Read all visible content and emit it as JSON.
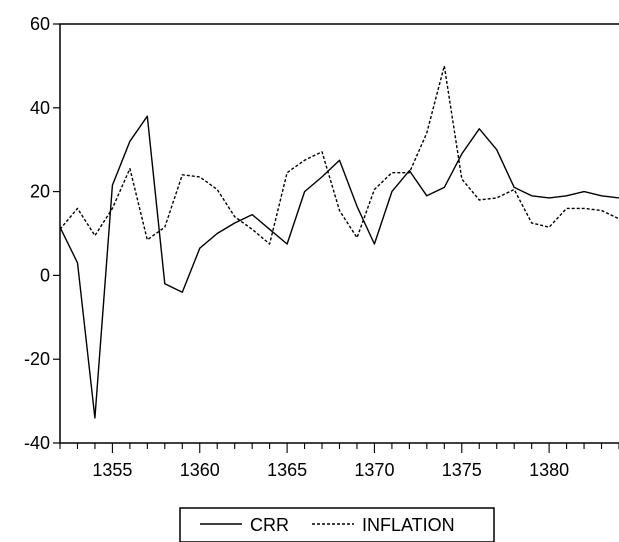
{
  "chart_data": {
    "type": "line",
    "title": "",
    "xlabel": "",
    "ylabel": "",
    "xlim": [
      1352,
      1384
    ],
    "ylim": [
      -40,
      60
    ],
    "x_ticks": [
      1355,
      1360,
      1365,
      1370,
      1375,
      1380
    ],
    "y_ticks": [
      -40,
      -20,
      0,
      20,
      40,
      60
    ],
    "grid": false,
    "legend_position": "bottom-center",
    "x": [
      1352,
      1353,
      1354,
      1355,
      1356,
      1357,
      1358,
      1359,
      1360,
      1361,
      1362,
      1363,
      1364,
      1365,
      1366,
      1367,
      1368,
      1369,
      1370,
      1371,
      1372,
      1373,
      1374,
      1375,
      1376,
      1377,
      1378,
      1379,
      1380,
      1381,
      1382,
      1383,
      1384
    ],
    "series": [
      {
        "name": "CRR",
        "style": "solid",
        "color": "#000000",
        "values": [
          11.5,
          3,
          -34,
          21.5,
          32,
          38,
          -2,
          -4,
          6.5,
          10,
          12.5,
          14.5,
          11,
          7.5,
          20,
          23.5,
          27.5,
          16.5,
          7.5,
          20,
          25,
          19,
          21,
          29,
          35,
          30,
          21,
          19,
          18.5,
          19,
          20,
          19,
          18.5
        ]
      },
      {
        "name": "INFLATION",
        "style": "dashed",
        "color": "#000000",
        "values": [
          11,
          16,
          9.5,
          16,
          25.5,
          8.5,
          11.5,
          24,
          23.5,
          20.5,
          14,
          11,
          7.5,
          24.5,
          27.5,
          29.5,
          15.5,
          9,
          20.5,
          24.5,
          24.5,
          34,
          50,
          23,
          18,
          18.5,
          20.5,
          12.5,
          11.5,
          16,
          16,
          15.5,
          13.5
        ]
      }
    ]
  }
}
